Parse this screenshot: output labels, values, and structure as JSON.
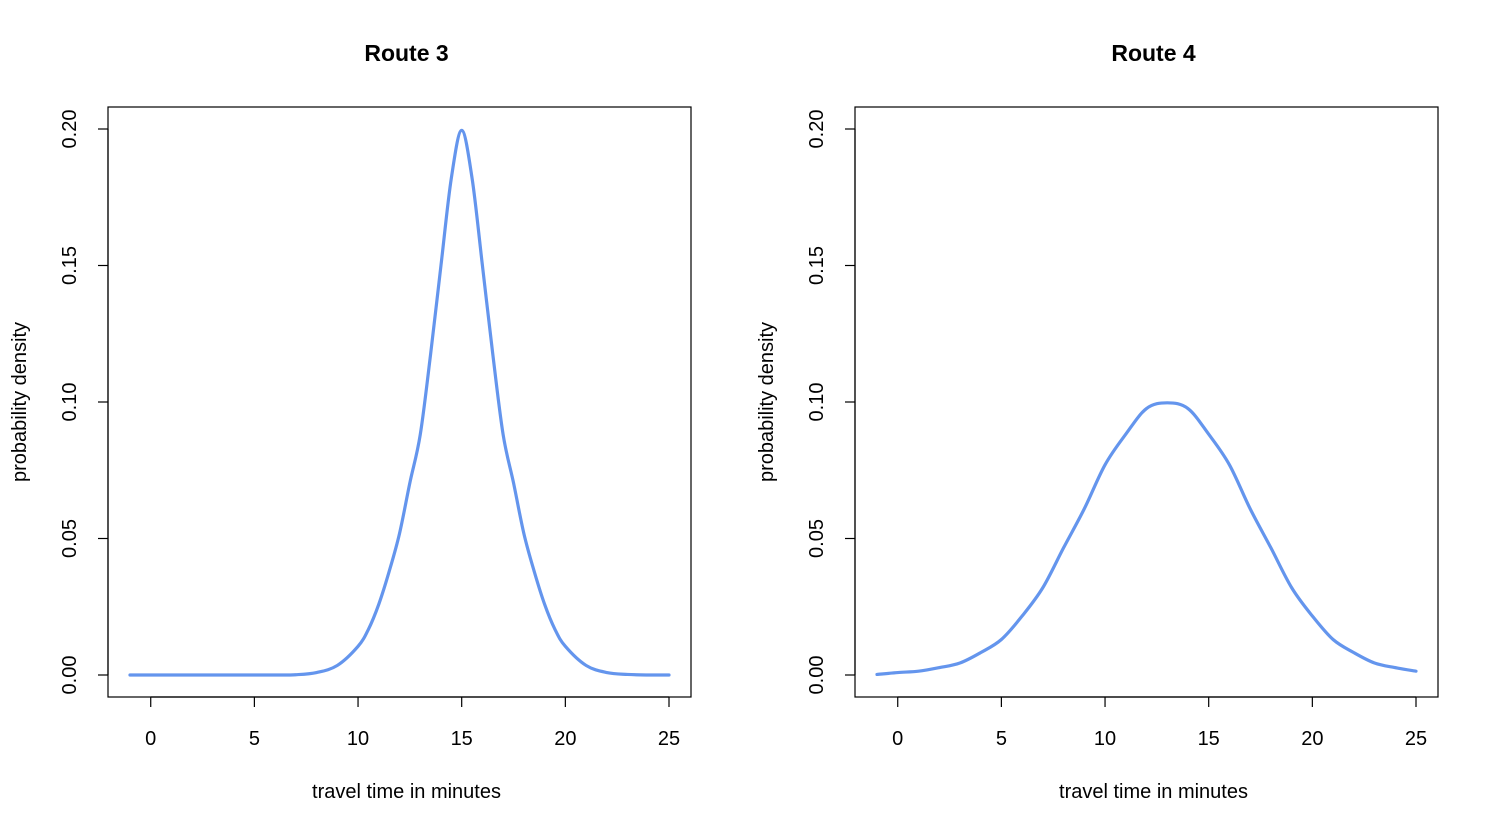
{
  "chart_data": [
    {
      "type": "line",
      "title": "Route 3",
      "xlabel": "travel time in minutes",
      "ylabel": "probability density",
      "xlim": [
        -1,
        25
      ],
      "ylim": [
        0,
        0.2
      ],
      "xticks": [
        0,
        5,
        10,
        15,
        20,
        25
      ],
      "yticks": [
        0.0,
        0.05,
        0.1,
        0.15,
        0.2
      ],
      "xtick_labels": [
        "0",
        "5",
        "10",
        "15",
        "20",
        "25"
      ],
      "ytick_labels": [
        "0.00",
        "0.05",
        "0.10",
        "0.15",
        "0.20"
      ],
      "grid": false,
      "color": "#6495ED",
      "series": [
        {
          "x": [
            -1,
            0,
            1,
            2,
            3,
            4,
            5,
            6,
            7,
            8,
            9,
            10,
            10.5,
            11,
            11.5,
            12,
            12.5,
            13,
            13.5,
            14,
            14.5,
            15,
            15.5,
            16,
            16.5,
            17,
            17.5,
            18,
            18.5,
            19,
            19.5,
            20,
            21,
            22,
            23,
            24,
            25
          ],
          "values": [
            0.0,
            0.0,
            0.0,
            0.0,
            0.0,
            0.0,
            0.0,
            0.0,
            0.0001,
            0.0009,
            0.0035,
            0.0105,
            0.0167,
            0.0259,
            0.0379,
            0.0518,
            0.0704,
            0.088,
            0.1175,
            0.15,
            0.182,
            0.1995,
            0.182,
            0.15,
            0.1175,
            0.088,
            0.0704,
            0.0518,
            0.0379,
            0.0259,
            0.0167,
            0.0105,
            0.0035,
            0.0009,
            0.0002,
            0.0,
            0.0
          ]
        }
      ]
    },
    {
      "type": "line",
      "title": "Route 4",
      "xlabel": "travel time in minutes",
      "ylabel": "probability density",
      "xlim": [
        -1,
        25
      ],
      "ylim": [
        0,
        0.2
      ],
      "xticks": [
        0,
        5,
        10,
        15,
        20,
        25
      ],
      "yticks": [
        0.0,
        0.05,
        0.1,
        0.15,
        0.2
      ],
      "xtick_labels": [
        "0",
        "5",
        "10",
        "15",
        "20",
        "25"
      ],
      "ytick_labels": [
        "0.00",
        "0.05",
        "0.10",
        "0.15",
        "0.20"
      ],
      "grid": false,
      "color": "#6495ED",
      "series": [
        {
          "x": [
            -1,
            0,
            1,
            2,
            3,
            4,
            5,
            6,
            7,
            8,
            9,
            10,
            11,
            12,
            13,
            14,
            15,
            16,
            17,
            18,
            19,
            20,
            21,
            22,
            23,
            24,
            25
          ],
          "values": [
            0.0002,
            0.0009,
            0.0014,
            0.0027,
            0.0044,
            0.0082,
            0.013,
            0.0216,
            0.032,
            0.0466,
            0.0609,
            0.077,
            0.0882,
            0.0976,
            0.0997,
            0.0976,
            0.0882,
            0.077,
            0.0609,
            0.0466,
            0.032,
            0.0216,
            0.013,
            0.0082,
            0.0044,
            0.0027,
            0.0014
          ]
        }
      ]
    }
  ]
}
